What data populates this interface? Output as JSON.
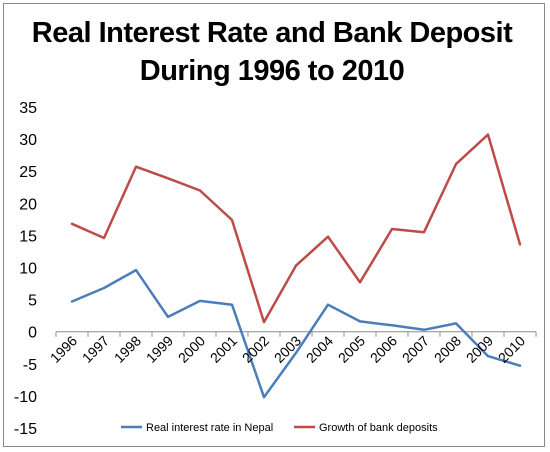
{
  "chart_data": {
    "type": "line",
    "title_lines": [
      "Real Interest Rate and Bank Deposit",
      "During 1996 to 2010"
    ],
    "xlabel": "",
    "ylabel": "",
    "x": [
      "1996",
      "1997",
      "1998",
      "1999",
      "2000",
      "2001",
      "2002",
      "2003",
      "2004",
      "2005",
      "2006",
      "2007",
      "2008",
      "2009",
      "2010"
    ],
    "ylim": [
      -15,
      35
    ],
    "yticks": [
      -15,
      -10,
      -5,
      0,
      5,
      10,
      15,
      20,
      25,
      30,
      35
    ],
    "grid": false,
    "legend_position": "bottom",
    "series": [
      {
        "name": "Real interest rate in Nepal",
        "color": "#4a7ebb",
        "values": [
          4.7,
          6.8,
          9.6,
          2.3,
          4.8,
          4.2,
          -10.2,
          -3.3,
          4.2,
          1.6,
          1.0,
          0.3,
          1.3,
          -3.8,
          -5.3
        ]
      },
      {
        "name": "Growth of bank deposits",
        "color": "#be4b48",
        "values": [
          16.8,
          14.6,
          25.7,
          23.9,
          22.0,
          17.4,
          1.5,
          10.3,
          14.8,
          7.7,
          16.0,
          15.5,
          26.1,
          30.7,
          13.6
        ]
      }
    ]
  }
}
